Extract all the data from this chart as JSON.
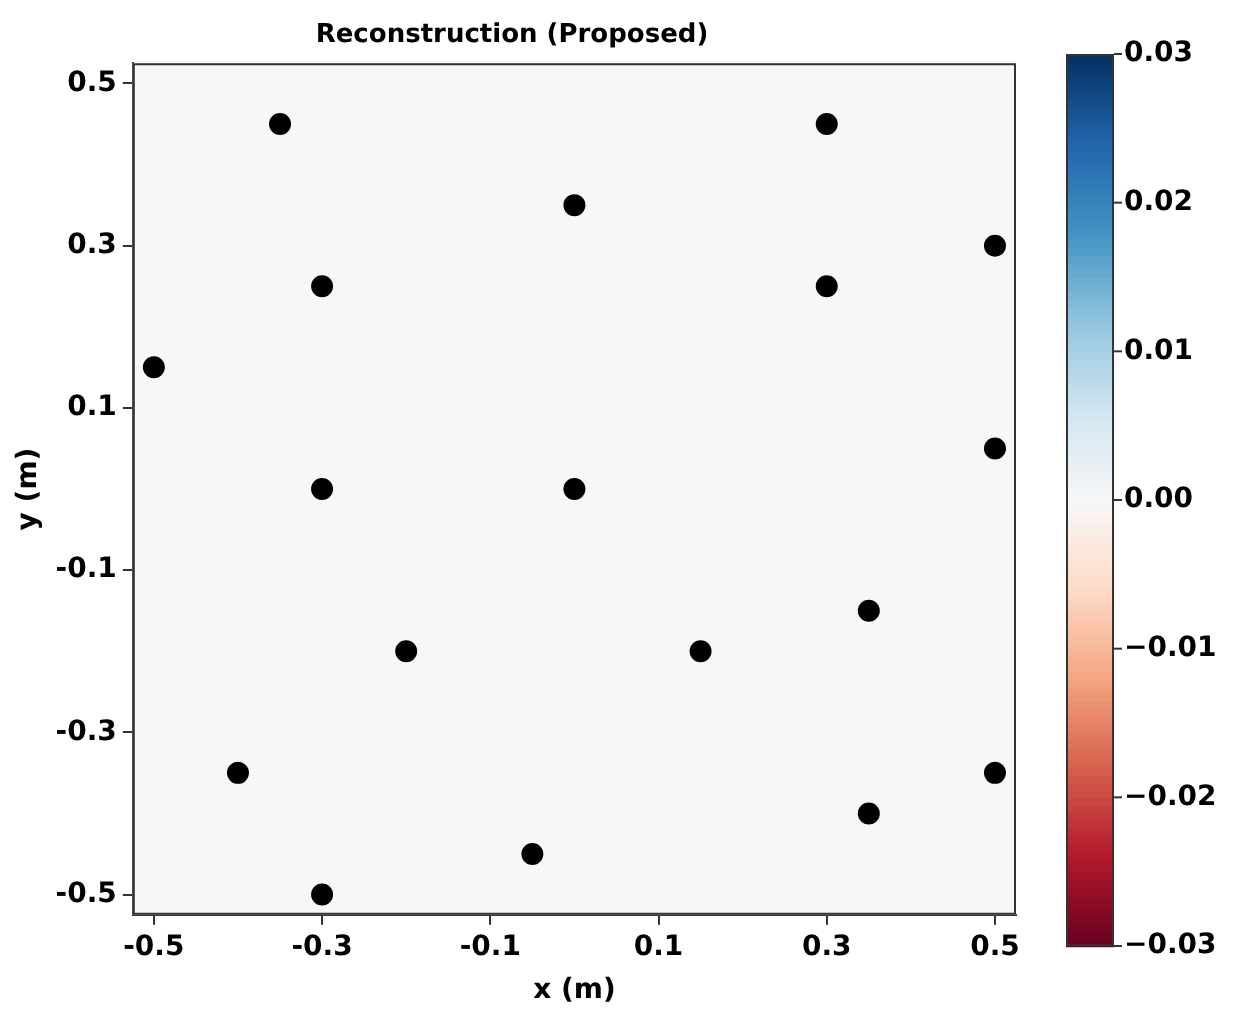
{
  "chart_data": {
    "type": "scatter",
    "title": "Reconstruction (Proposed)",
    "xlabel": "x (m)",
    "ylabel": "y (m)",
    "xlim": [
      -0.525,
      0.525
    ],
    "ylim": [
      -0.525,
      0.525
    ],
    "xticks": [
      -0.5,
      -0.3,
      -0.1,
      0.1,
      0.3,
      0.5
    ],
    "yticks": [
      -0.5,
      -0.3,
      -0.1,
      0.1,
      0.3,
      0.5
    ],
    "clim": [
      -0.03,
      0.03
    ],
    "cticks": [
      {
        "value": -0.03,
        "label": "−0.03"
      },
      {
        "value": -0.02,
        "label": "−0.02"
      },
      {
        "value": -0.01,
        "label": "−0.01"
      },
      {
        "value": 0,
        "label": "0.00"
      },
      {
        "value": 0.01,
        "label": "0.01"
      },
      {
        "value": 0.02,
        "label": "0.02"
      },
      {
        "value": 0.03,
        "label": "0.03"
      }
    ],
    "grid": false,
    "legend": false,
    "marker": "circle",
    "series": [
      {
        "color": "#000000",
        "x": [
          -0.35,
          0.3,
          0,
          -0.3,
          0.3,
          0.5,
          -0.5,
          0.5,
          -0.3,
          0,
          0.35,
          -0.2,
          0.15,
          -0.4,
          0.5,
          0.35,
          -0.05,
          -0.3
        ],
        "values": [
          0.45,
          0.45,
          0.35,
          0.25,
          0.25,
          0.3,
          0.15,
          0.05,
          0,
          0,
          -0.15,
          -0.2,
          -0.2,
          -0.35,
          -0.35,
          -0.4,
          -0.45,
          -0.5
        ]
      }
    ]
  }
}
